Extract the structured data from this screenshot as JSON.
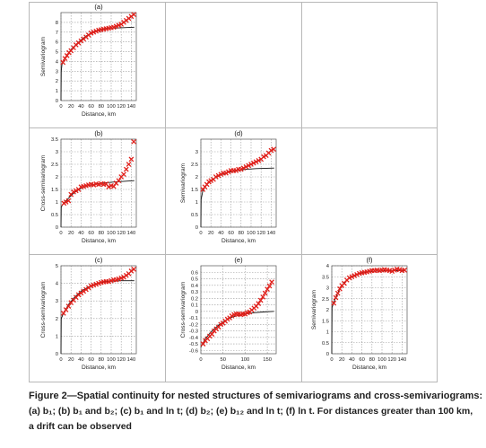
{
  "figure": {
    "caption_lines": [
      "Figure 2—Spatial continuity for nested structures of semivariograms and cross-semivariograms:",
      "(a) b₁; (b) b₁ and b₂; (c) b₁ and ln t; (d) b₂; (e) b₁₂ and ln t; (f) ln t. For distances greater than 100 km,",
      "a drift can be observed"
    ]
  },
  "chart_data": [
    {
      "type": "scatter",
      "panel": "(a)",
      "title": "(a)",
      "xlabel": "Distance, km",
      "ylabel": "Semivariogram",
      "xlim": [
        0,
        150
      ],
      "ylim": [
        0,
        9
      ],
      "xticks": [
        0,
        20,
        40,
        60,
        80,
        100,
        120,
        140
      ],
      "yticks": [
        0,
        1,
        2,
        3,
        4,
        5,
        6,
        7,
        8
      ],
      "grid": true,
      "points": [
        [
          4,
          3.9
        ],
        [
          8,
          4.3
        ],
        [
          12,
          4.6
        ],
        [
          16,
          4.9
        ],
        [
          20,
          5.1
        ],
        [
          25,
          5.4
        ],
        [
          30,
          5.7
        ],
        [
          35,
          5.9
        ],
        [
          40,
          6.1
        ],
        [
          45,
          6.3
        ],
        [
          50,
          6.5
        ],
        [
          55,
          6.7
        ],
        [
          60,
          6.9
        ],
        [
          65,
          7.0
        ],
        [
          70,
          7.1
        ],
        [
          75,
          7.2
        ],
        [
          80,
          7.25
        ],
        [
          85,
          7.3
        ],
        [
          90,
          7.35
        ],
        [
          95,
          7.4
        ],
        [
          100,
          7.45
        ],
        [
          105,
          7.5
        ],
        [
          110,
          7.6
        ],
        [
          115,
          7.7
        ],
        [
          120,
          7.8
        ],
        [
          125,
          8.0
        ],
        [
          130,
          8.2
        ],
        [
          135,
          8.4
        ],
        [
          140,
          8.6
        ],
        [
          145,
          8.8
        ]
      ],
      "model": [
        [
          0,
          0
        ],
        [
          0.5,
          3.0
        ],
        [
          2,
          3.7
        ],
        [
          10,
          4.5
        ],
        [
          20,
          5.2
        ],
        [
          30,
          5.75
        ],
        [
          40,
          6.2
        ],
        [
          50,
          6.6
        ],
        [
          60,
          6.9
        ],
        [
          70,
          7.1
        ],
        [
          80,
          7.25
        ],
        [
          90,
          7.35
        ],
        [
          100,
          7.4
        ],
        [
          120,
          7.45
        ],
        [
          146,
          7.5
        ]
      ]
    },
    {
      "type": "scatter",
      "panel": "(b)",
      "title": "(b)",
      "xlabel": "Distance, km",
      "ylabel": "Cross-semivariogram",
      "xlim": [
        0,
        150
      ],
      "ylim": [
        0,
        3.5
      ],
      "xticks": [
        0,
        20,
        40,
        60,
        80,
        100,
        120,
        140
      ],
      "yticks": [
        0,
        0.5,
        1,
        1.5,
        2,
        2.5,
        3,
        3.5
      ],
      "grid": true,
      "points": [
        [
          6,
          0.95
        ],
        [
          10,
          1.0
        ],
        [
          15,
          1.05
        ],
        [
          20,
          1.3
        ],
        [
          25,
          1.4
        ],
        [
          30,
          1.45
        ],
        [
          35,
          1.5
        ],
        [
          40,
          1.6
        ],
        [
          45,
          1.62
        ],
        [
          50,
          1.65
        ],
        [
          55,
          1.68
        ],
        [
          60,
          1.7
        ],
        [
          65,
          1.68
        ],
        [
          70,
          1.72
        ],
        [
          75,
          1.7
        ],
        [
          80,
          1.73
        ],
        [
          85,
          1.7
        ],
        [
          90,
          1.72
        ],
        [
          95,
          1.6
        ],
        [
          100,
          1.65
        ],
        [
          105,
          1.62
        ],
        [
          110,
          1.75
        ],
        [
          115,
          1.85
        ],
        [
          120,
          2.0
        ],
        [
          125,
          2.1
        ],
        [
          130,
          2.3
        ],
        [
          135,
          2.5
        ],
        [
          140,
          2.7
        ],
        [
          145,
          3.4
        ]
      ],
      "model": [
        [
          0,
          0
        ],
        [
          0.5,
          0.8
        ],
        [
          5,
          0.95
        ],
        [
          15,
          1.15
        ],
        [
          25,
          1.35
        ],
        [
          40,
          1.55
        ],
        [
          55,
          1.65
        ],
        [
          70,
          1.72
        ],
        [
          90,
          1.77
        ],
        [
          110,
          1.8
        ],
        [
          146,
          1.85
        ]
      ]
    },
    {
      "type": "scatter",
      "panel": "(c)",
      "title": "(c)",
      "xlabel": "Distance, km",
      "ylabel": "Cross-semivariogram",
      "xlim": [
        0,
        150
      ],
      "ylim": [
        0,
        5
      ],
      "xticks": [
        0,
        20,
        40,
        60,
        80,
        100,
        120,
        140
      ],
      "yticks": [
        0,
        1,
        2,
        3,
        4,
        5
      ],
      "grid": true,
      "points": [
        [
          5,
          2.3
        ],
        [
          10,
          2.5
        ],
        [
          15,
          2.7
        ],
        [
          20,
          2.9
        ],
        [
          25,
          3.05
        ],
        [
          30,
          3.2
        ],
        [
          35,
          3.35
        ],
        [
          40,
          3.45
        ],
        [
          45,
          3.55
        ],
        [
          50,
          3.65
        ],
        [
          55,
          3.75
        ],
        [
          60,
          3.85
        ],
        [
          65,
          3.9
        ],
        [
          70,
          3.95
        ],
        [
          75,
          4.0
        ],
        [
          80,
          4.05
        ],
        [
          85,
          4.08
        ],
        [
          90,
          4.1
        ],
        [
          95,
          4.1
        ],
        [
          100,
          4.15
        ],
        [
          105,
          4.2
        ],
        [
          110,
          4.2
        ],
        [
          115,
          4.25
        ],
        [
          120,
          4.3
        ],
        [
          125,
          4.35
        ],
        [
          130,
          4.45
        ],
        [
          135,
          4.55
        ],
        [
          140,
          4.7
        ],
        [
          145,
          4.8
        ]
      ],
      "model": [
        [
          0,
          0
        ],
        [
          0.5,
          2.0
        ],
        [
          5,
          2.3
        ],
        [
          15,
          2.8
        ],
        [
          25,
          3.15
        ],
        [
          40,
          3.55
        ],
        [
          55,
          3.8
        ],
        [
          70,
          3.98
        ],
        [
          85,
          4.08
        ],
        [
          100,
          4.12
        ],
        [
          120,
          4.15
        ],
        [
          146,
          4.15
        ]
      ]
    },
    {
      "type": "scatter",
      "panel": "(d)",
      "title": "(d)",
      "xlabel": "Distance, km",
      "ylabel": "Semivariogram",
      "xlim": [
        0,
        150
      ],
      "ylim": [
        0,
        3.5
      ],
      "xticks": [
        0,
        20,
        40,
        60,
        80,
        100,
        120,
        140
      ],
      "yticks": [
        0,
        0.5,
        1,
        1.5,
        2,
        2.5,
        3
      ],
      "grid": true,
      "points": [
        [
          4,
          1.5
        ],
        [
          8,
          1.6
        ],
        [
          12,
          1.7
        ],
        [
          16,
          1.8
        ],
        [
          20,
          1.85
        ],
        [
          25,
          1.9
        ],
        [
          30,
          2.0
        ],
        [
          35,
          2.05
        ],
        [
          40,
          2.1
        ],
        [
          45,
          2.15
        ],
        [
          50,
          2.15
        ],
        [
          55,
          2.2
        ],
        [
          60,
          2.25
        ],
        [
          65,
          2.25
        ],
        [
          70,
          2.25
        ],
        [
          75,
          2.3
        ],
        [
          80,
          2.3
        ],
        [
          85,
          2.35
        ],
        [
          90,
          2.4
        ],
        [
          95,
          2.45
        ],
        [
          100,
          2.5
        ],
        [
          105,
          2.55
        ],
        [
          110,
          2.6
        ],
        [
          115,
          2.65
        ],
        [
          120,
          2.7
        ],
        [
          125,
          2.8
        ],
        [
          130,
          2.85
        ],
        [
          135,
          2.95
        ],
        [
          140,
          3.05
        ],
        [
          145,
          3.1
        ]
      ],
      "model": [
        [
          0,
          0
        ],
        [
          0.5,
          1.1
        ],
        [
          4,
          1.45
        ],
        [
          12,
          1.7
        ],
        [
          25,
          1.92
        ],
        [
          40,
          2.08
        ],
        [
          55,
          2.18
        ],
        [
          70,
          2.25
        ],
        [
          90,
          2.3
        ],
        [
          110,
          2.33
        ],
        [
          146,
          2.35
        ]
      ]
    },
    {
      "type": "scatter",
      "panel": "(e)",
      "title": "(e)",
      "xlabel": "Distance, km",
      "ylabel": "Cross-semivariogram",
      "xlim": [
        0,
        170
      ],
      "ylim": [
        -0.65,
        0.7
      ],
      "xticks": [
        0,
        50,
        100,
        150
      ],
      "yticks": [
        -0.6,
        -0.5,
        -0.4,
        -0.3,
        -0.2,
        -0.1,
        0,
        0.1,
        0.2,
        0.3,
        0.4,
        0.5,
        0.6
      ],
      "grid": true,
      "points": [
        [
          5,
          -0.5
        ],
        [
          10,
          -0.45
        ],
        [
          15,
          -0.42
        ],
        [
          20,
          -0.38
        ],
        [
          25,
          -0.35
        ],
        [
          30,
          -0.3
        ],
        [
          35,
          -0.27
        ],
        [
          40,
          -0.24
        ],
        [
          45,
          -0.2
        ],
        [
          50,
          -0.18
        ],
        [
          55,
          -0.15
        ],
        [
          60,
          -0.12
        ],
        [
          65,
          -0.1
        ],
        [
          70,
          -0.07
        ],
        [
          75,
          -0.05
        ],
        [
          80,
          -0.04
        ],
        [
          85,
          -0.04
        ],
        [
          90,
          -0.05
        ],
        [
          95,
          -0.04
        ],
        [
          100,
          -0.04
        ],
        [
          105,
          -0.02
        ],
        [
          110,
          -0.01
        ],
        [
          115,
          0.02
        ],
        [
          120,
          0.05
        ],
        [
          125,
          0.08
        ],
        [
          130,
          0.12
        ],
        [
          135,
          0.17
        ],
        [
          140,
          0.22
        ],
        [
          145,
          0.28
        ],
        [
          150,
          0.34
        ],
        [
          155,
          0.39
        ],
        [
          160,
          0.45
        ]
      ],
      "model": [
        [
          0,
          -0.55
        ],
        [
          10,
          -0.42
        ],
        [
          25,
          -0.3
        ],
        [
          40,
          -0.21
        ],
        [
          55,
          -0.14
        ],
        [
          70,
          -0.09
        ],
        [
          85,
          -0.06
        ],
        [
          100,
          -0.04
        ],
        [
          120,
          -0.02
        ],
        [
          140,
          -0.01
        ],
        [
          165,
          0.0
        ]
      ]
    },
    {
      "type": "scatter",
      "panel": "(f)",
      "title": "(f)",
      "xlabel": "Distance, km",
      "ylabel": "Semivariogram",
      "xlim": [
        0,
        150
      ],
      "ylim": [
        0,
        4
      ],
      "xticks": [
        0,
        20,
        40,
        60,
        80,
        100,
        120,
        140
      ],
      "yticks": [
        0,
        0.5,
        1,
        1.5,
        2,
        2.5,
        3,
        3.5,
        4
      ],
      "grid": true,
      "points": [
        [
          4,
          2.3
        ],
        [
          8,
          2.55
        ],
        [
          12,
          2.75
        ],
        [
          16,
          2.95
        ],
        [
          20,
          3.1
        ],
        [
          25,
          3.2
        ],
        [
          30,
          3.35
        ],
        [
          35,
          3.45
        ],
        [
          40,
          3.5
        ],
        [
          45,
          3.55
        ],
        [
          50,
          3.6
        ],
        [
          55,
          3.65
        ],
        [
          60,
          3.68
        ],
        [
          65,
          3.7
        ],
        [
          70,
          3.72
        ],
        [
          75,
          3.75
        ],
        [
          80,
          3.78
        ],
        [
          85,
          3.78
        ],
        [
          90,
          3.8
        ],
        [
          95,
          3.78
        ],
        [
          100,
          3.8
        ],
        [
          105,
          3.82
        ],
        [
          110,
          3.8
        ],
        [
          115,
          3.78
        ],
        [
          120,
          3.75
        ],
        [
          125,
          3.8
        ],
        [
          130,
          3.85
        ],
        [
          135,
          3.82
        ],
        [
          140,
          3.78
        ],
        [
          145,
          3.8
        ]
      ],
      "model": [
        [
          0,
          0
        ],
        [
          0.5,
          2.1
        ],
        [
          5,
          2.4
        ],
        [
          15,
          2.9
        ],
        [
          25,
          3.25
        ],
        [
          40,
          3.52
        ],
        [
          55,
          3.65
        ],
        [
          70,
          3.72
        ],
        [
          90,
          3.76
        ],
        [
          120,
          3.78
        ],
        [
          146,
          3.78
        ]
      ]
    }
  ]
}
